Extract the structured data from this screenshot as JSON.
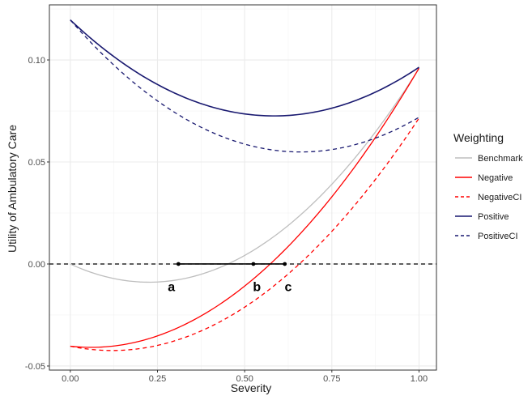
{
  "chart_data": {
    "type": "line",
    "xlabel": "Severity",
    "ylabel": "Utility of Ambulatory Care",
    "xlim": [
      -0.06,
      1.05
    ],
    "ylim": [
      -0.052,
      0.127
    ],
    "x_ticks": [
      0.0,
      0.25,
      0.5,
      0.75,
      1.0
    ],
    "x_tick_labels": [
      "0.00",
      "0.25",
      "0.50",
      "0.75",
      "1.00"
    ],
    "y_ticks": [
      -0.05,
      0.0,
      0.05,
      0.1
    ],
    "y_tick_labels": [
      "-0.05",
      "0.00",
      "0.05",
      "0.10"
    ],
    "grid": true,
    "legend": {
      "title": "Weighting",
      "position": "right"
    },
    "series": [
      {
        "name": "Benchmark",
        "color": "#bebebe",
        "dash": "solid",
        "a": 0.0,
        "b": -0.079,
        "c": 0.1748
      },
      {
        "name": "Negative",
        "color": "#ff0000",
        "dash": "solid",
        "a": -0.0403,
        "b": -0.0184,
        "c": 0.1547
      },
      {
        "name": "NegativeCI",
        "color": "#ff0000",
        "dash": "dashed",
        "a": -0.0403,
        "b": -0.0352,
        "c": 0.147
      },
      {
        "name": "Positive",
        "color": "#191970",
        "dash": "solid",
        "a": 0.1196,
        "b": -0.161,
        "c": 0.1378
      },
      {
        "name": "PositiveCI",
        "color": "#191970",
        "dash": "dashed",
        "a": 0.1196,
        "b": -0.1957,
        "c": 0.148
      }
    ],
    "reference_line": {
      "y": 0.0,
      "style": "dashed",
      "color": "#000000"
    },
    "segment": {
      "x_start": 0.31,
      "x_end": 0.615,
      "y": 0.0,
      "color": "#000000"
    },
    "points": [
      {
        "label": "a",
        "x": 0.31,
        "y": 0.0
      },
      {
        "label": "b",
        "x": 0.525,
        "y": 0.0
      },
      {
        "label": "c",
        "x": 0.615,
        "y": 0.0
      }
    ],
    "annotations": [
      {
        "text": "a",
        "x": 0.29,
        "y": -0.011
      },
      {
        "text": "b",
        "x": 0.535,
        "y": -0.011
      },
      {
        "text": "c",
        "x": 0.625,
        "y": -0.011
      }
    ]
  }
}
